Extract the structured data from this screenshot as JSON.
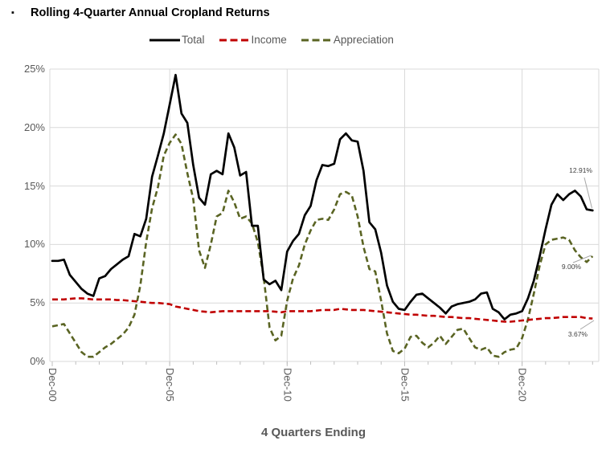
{
  "title": {
    "bullet": "▪",
    "text": "Rolling 4-Quarter Annual Cropland Returns"
  },
  "legend": {
    "position": "top"
  },
  "axes": {
    "y": {
      "tick_labels": [
        "0%",
        "5%",
        "10%",
        "15%",
        "20%",
        "25%"
      ],
      "min": 0,
      "max": 25,
      "step": 5
    },
    "x": {
      "tick_labels": [
        "Dec-00",
        "Dec-05",
        "Dec-10",
        "Dec-15",
        "Dec-20"
      ],
      "major_tick_indices": [
        0,
        20,
        40,
        60,
        80
      ],
      "minor_tick_every": 4,
      "title": "4 Quarters Ending"
    }
  },
  "colors": {
    "background": "#ffffff",
    "grid": "#d9d9d9",
    "axis_tick": "#bfbfbf",
    "tick_text": "#595959",
    "axis_title_text": "#595959",
    "title_text": "#000000",
    "data_label_text": "#404040",
    "leader_line": "#a6a6a6",
    "total_line": "#000000",
    "income_line": "#c00000",
    "appreciation_line": "#5a6423"
  },
  "chart_data": {
    "type": "line",
    "title": "Rolling 4-Quarter Annual Cropland Returns",
    "xlabel": "4 Quarters Ending",
    "ylabel": "",
    "ylim": [
      0,
      25
    ],
    "y_unit": "percent",
    "grid": true,
    "legend_position": "top",
    "x_frequency": "quarterly",
    "x_tick_labels": [
      "Dec-00",
      "Dec-05",
      "Dec-10",
      "Dec-15",
      "Dec-20"
    ],
    "x_major_tick_indices": [
      0,
      20,
      40,
      60,
      80
    ],
    "n_points": 93,
    "series": [
      {
        "name": "Total",
        "color": "#000000",
        "style": "solid",
        "end_label": "12.91%",
        "values": [
          8.6,
          8.6,
          8.7,
          7.4,
          6.8,
          6.2,
          5.8,
          5.6,
          7.1,
          7.3,
          7.9,
          8.3,
          8.7,
          9.0,
          10.9,
          10.7,
          12.2,
          15.8,
          17.6,
          19.5,
          22.0,
          24.5,
          21.2,
          20.4,
          16.8,
          14.0,
          13.4,
          16.0,
          16.3,
          16.0,
          19.5,
          18.3,
          15.9,
          16.2,
          11.6,
          11.6,
          7.0,
          6.6,
          6.9,
          6.1,
          9.4,
          10.3,
          10.9,
          12.5,
          13.3,
          15.5,
          16.8,
          16.7,
          16.9,
          19.0,
          19.5,
          18.9,
          18.8,
          16.3,
          11.9,
          11.3,
          9.3,
          6.5,
          5.1,
          4.5,
          4.4,
          5.1,
          5.7,
          5.8,
          5.4,
          5.0,
          4.6,
          4.1,
          4.7,
          4.9,
          5.0,
          5.1,
          5.3,
          5.8,
          5.9,
          4.5,
          4.2,
          3.6,
          4.0,
          4.1,
          4.3,
          5.4,
          6.9,
          9.0,
          11.3,
          13.4,
          14.3,
          13.8,
          14.3,
          14.6,
          14.1,
          13.0,
          12.91
        ]
      },
      {
        "name": "Income",
        "color": "#c00000",
        "style": "dashed",
        "end_label": "3.67%",
        "values": [
          5.3,
          5.3,
          5.3,
          5.35,
          5.4,
          5.4,
          5.35,
          5.3,
          5.3,
          5.3,
          5.3,
          5.25,
          5.25,
          5.2,
          5.15,
          5.1,
          5.05,
          5.0,
          5.0,
          4.95,
          4.9,
          4.7,
          4.6,
          4.5,
          4.4,
          4.3,
          4.25,
          4.2,
          4.25,
          4.3,
          4.3,
          4.3,
          4.3,
          4.3,
          4.3,
          4.3,
          4.3,
          4.3,
          4.25,
          4.2,
          4.3,
          4.3,
          4.3,
          4.3,
          4.3,
          4.35,
          4.4,
          4.4,
          4.4,
          4.5,
          4.45,
          4.4,
          4.4,
          4.4,
          4.35,
          4.3,
          4.25,
          4.2,
          4.15,
          4.1,
          4.05,
          4.0,
          4.0,
          3.95,
          3.9,
          3.9,
          3.85,
          3.8,
          3.8,
          3.75,
          3.7,
          3.7,
          3.65,
          3.6,
          3.55,
          3.5,
          3.45,
          3.4,
          3.4,
          3.45,
          3.5,
          3.55,
          3.6,
          3.65,
          3.7,
          3.7,
          3.75,
          3.8,
          3.8,
          3.8,
          3.8,
          3.7,
          3.67
        ]
      },
      {
        "name": "Appreciation",
        "color": "#5a6423",
        "style": "dashed",
        "end_label": "9.00%",
        "values": [
          3.0,
          3.1,
          3.2,
          2.4,
          1.6,
          0.8,
          0.4,
          0.4,
          0.8,
          1.2,
          1.5,
          1.9,
          2.3,
          2.9,
          4.0,
          6.5,
          10.2,
          13.1,
          14.9,
          17.6,
          18.7,
          19.4,
          18.6,
          16.1,
          13.9,
          9.5,
          8.0,
          10.0,
          12.4,
          12.7,
          14.6,
          13.6,
          12.2,
          12.4,
          11.8,
          10.2,
          7.2,
          2.9,
          1.8,
          2.2,
          5.2,
          7.1,
          8.2,
          10.0,
          11.2,
          12.1,
          12.2,
          12.1,
          13.0,
          14.3,
          14.5,
          14.2,
          12.4,
          9.8,
          7.9,
          7.7,
          5.2,
          2.4,
          0.9,
          0.7,
          1.1,
          2.1,
          2.2,
          1.6,
          1.2,
          1.6,
          2.2,
          1.5,
          2.1,
          2.7,
          2.8,
          2.0,
          1.2,
          1.0,
          1.2,
          0.5,
          0.4,
          0.8,
          1.0,
          1.1,
          2.0,
          3.6,
          5.8,
          8.2,
          10.0,
          10.4,
          10.5,
          10.6,
          10.4,
          9.5,
          8.9,
          8.5,
          9.0
        ]
      }
    ],
    "end_labels": [
      {
        "text": "12.91%",
        "series": "Total"
      },
      {
        "text": "9.00%",
        "series": "Appreciation"
      },
      {
        "text": "3.67%",
        "series": "Income"
      }
    ]
  }
}
